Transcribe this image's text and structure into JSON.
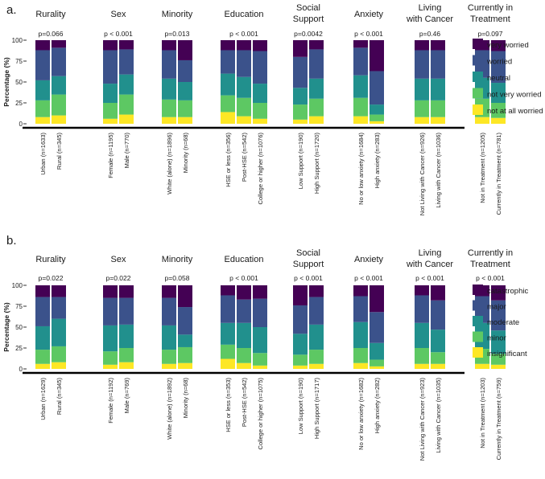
{
  "colors": {
    "c5": "#440154",
    "c4": "#3b528b",
    "c3": "#21908d",
    "c2": "#5dc863",
    "c1": "#fde725",
    "axis": "#000000",
    "text": "#1a1a1a"
  },
  "chart_data": [
    {
      "type": "bar",
      "stacked": true,
      "panel_label": "a.",
      "ylabel": "Percentage (%)",
      "ylim": [
        0,
        100
      ],
      "yticks": [
        "0",
        "25",
        "50",
        "75",
        "100"
      ],
      "legend": {
        "position": "right",
        "entries": [
          "very worried",
          "worried",
          "neutral",
          "not very worried",
          "not at all worried"
        ]
      },
      "series_order_bottom_to_top": [
        "not at all worried",
        "not very worried",
        "neutral",
        "worried",
        "very worried"
      ],
      "groups": [
        {
          "title": [
            "Rurality"
          ],
          "pvalue": "p=0.066",
          "bars": [
            {
              "label": "Urban (n=1633)",
              "values": [
                8,
                20,
                24,
                36,
                12
              ]
            },
            {
              "label": "Rural (n=345)",
              "values": [
                10,
                25,
                22,
                34,
                9
              ]
            }
          ]
        },
        {
          "title": [
            "Sex"
          ],
          "pvalue": "p < 0.001",
          "bars": [
            {
              "label": "Female (n=1195)",
              "values": [
                6,
                19,
                23,
                40,
                12
              ]
            },
            {
              "label": "Male (n=770)",
              "values": [
                11,
                24,
                24,
                30,
                11
              ]
            }
          ]
        },
        {
          "title": [
            "Minority"
          ],
          "pvalue": "p=0.013",
          "bars": [
            {
              "label": "White (alone) (n=1896)",
              "values": [
                8,
                21,
                25,
                34,
                12
              ]
            },
            {
              "label": "Minority (n=68)",
              "values": [
                8,
                20,
                22,
                26,
                24
              ]
            }
          ]
        },
        {
          "title": [
            "Education"
          ],
          "pvalue": "p < 0.001",
          "bars": [
            {
              "label": "HSE or less (n=356)",
              "values": [
                14,
                20,
                26,
                28,
                12
              ]
            },
            {
              "label": "Post-HSE (n=542)",
              "values": [
                9,
                22,
                25,
                32,
                12
              ]
            },
            {
              "label": "College or higher (n=1076)",
              "values": [
                6,
                19,
                23,
                39,
                13
              ]
            }
          ]
        },
        {
          "title": [
            "Social",
            "Support"
          ],
          "pvalue": "p=0.0042",
          "bars": [
            {
              "label": "Low Support (n=190)",
              "values": [
                5,
                18,
                20,
                37,
                20
              ]
            },
            {
              "label": "High Support (n=1720)",
              "values": [
                9,
                21,
                24,
                35,
                11
              ]
            }
          ]
        },
        {
          "title": [
            "Anxiety"
          ],
          "pvalue": "p < 0.001",
          "bars": [
            {
              "label": "No or low anxiety (n=1684)",
              "values": [
                9,
                22,
                27,
                33,
                9
              ]
            },
            {
              "label": "High anxiety (n=283)",
              "values": [
                3,
                8,
                12,
                40,
                37
              ]
            }
          ]
        },
        {
          "title": [
            "Living",
            "with Cancer"
          ],
          "pvalue": "p=0.46",
          "bars": [
            {
              "label": "Not Living with Cancer (n=926)",
              "values": [
                8,
                20,
                26,
                34,
                12
              ]
            },
            {
              "label": "Living with Cancer (n=1036)",
              "values": [
                8,
                20,
                26,
                34,
                12
              ]
            }
          ]
        },
        {
          "title": [
            "Currently in",
            "Treatment"
          ],
          "pvalue": "p=0.097",
          "bars": [
            {
              "label": "Not in Treatment (n=1205)",
              "values": [
                8,
                22,
                25,
                33,
                12
              ]
            },
            {
              "label": "Currently in Treatment (n=781)",
              "values": [
                7,
                18,
                24,
                38,
                13
              ]
            }
          ]
        }
      ]
    },
    {
      "type": "bar",
      "stacked": true,
      "panel_label": "b.",
      "ylabel": "Percentage (%)",
      "ylim": [
        0,
        100
      ],
      "yticks": [
        "0",
        "25",
        "50",
        "75",
        "100"
      ],
      "legend": {
        "position": "right",
        "entries": [
          "catastrophic",
          "major",
          "moderate",
          "minor",
          "insignificant"
        ]
      },
      "series_order_bottom_to_top": [
        "insignificant",
        "minor",
        "moderate",
        "major",
        "catastrophic"
      ],
      "groups": [
        {
          "title": [
            "Rurality"
          ],
          "pvalue": "p=0.022",
          "bars": [
            {
              "label": "Urban (n=1629)",
              "values": [
                6,
                17,
                28,
                35,
                14
              ]
            },
            {
              "label": "Rural (n=345)",
              "values": [
                8,
                19,
                33,
                26,
                14
              ]
            }
          ]
        },
        {
          "title": [
            "Sex"
          ],
          "pvalue": "p=0.022",
          "bars": [
            {
              "label": "Female (n=1192)",
              "values": [
                5,
                16,
                31,
                33,
                15
              ]
            },
            {
              "label": "Male (n=769)",
              "values": [
                8,
                17,
                28,
                32,
                15
              ]
            }
          ]
        },
        {
          "title": [
            "Minority"
          ],
          "pvalue": "p=0.058",
          "bars": [
            {
              "label": "White (alone) (n=1892)",
              "values": [
                6,
                17,
                29,
                33,
                15
              ]
            },
            {
              "label": "Minority (n=68)",
              "values": [
                7,
                19,
                15,
                33,
                26
              ]
            }
          ]
        },
        {
          "title": [
            "Education"
          ],
          "pvalue": "p < 0.001",
          "bars": [
            {
              "label": "HSE or less (n=353)",
              "values": [
                12,
                17,
                26,
                33,
                12
              ]
            },
            {
              "label": "Post-HSE (n=542)",
              "values": [
                7,
                18,
                30,
                28,
                17
              ]
            },
            {
              "label": "College or higher (n=1075)",
              "values": [
                4,
                15,
                31,
                34,
                16
              ]
            }
          ]
        },
        {
          "title": [
            "Social",
            "Support"
          ],
          "pvalue": "p < 0.001",
          "bars": [
            {
              "label": "Low Support (n=190)",
              "values": [
                4,
                13,
                25,
                34,
                24
              ]
            },
            {
              "label": "High Support (n=1717)",
              "values": [
                6,
                17,
                30,
                33,
                14
              ]
            }
          ]
        },
        {
          "title": [
            "Anxiety"
          ],
          "pvalue": "p < 0.001",
          "bars": [
            {
              "label": "No or low anxiety (n=1682)",
              "values": [
                7,
                18,
                31,
                31,
                13
              ]
            },
            {
              "label": "High anxiety (n=282)",
              "values": [
                3,
                8,
                20,
                37,
                32
              ]
            }
          ]
        },
        {
          "title": [
            "Living",
            "with Cancer"
          ],
          "pvalue": "p < 0.001",
          "bars": [
            {
              "label": "Not Living with Cancer (n=923)",
              "values": [
                6,
                19,
                30,
                33,
                12
              ]
            },
            {
              "label": "Living with Cancer (n=1035)",
              "values": [
                6,
                14,
                27,
                35,
                18
              ]
            }
          ]
        },
        {
          "title": [
            "Currently in",
            "Treatment"
          ],
          "pvalue": "p < 0.001",
          "bars": [
            {
              "label": "Not in Treatment (n=1203)",
              "values": [
                6,
                18,
                31,
                32,
                13
              ]
            },
            {
              "label": "Currently in Treatment (n=759)",
              "values": [
                5,
                13,
                28,
                36,
                18
              ]
            }
          ]
        }
      ]
    }
  ]
}
